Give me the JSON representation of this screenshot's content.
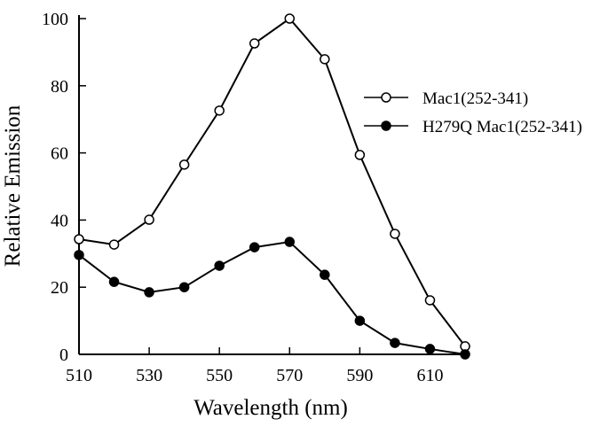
{
  "chart_data": {
    "type": "line",
    "x_label": "Wavelength (nm)",
    "y_label": "Relative Emission",
    "x": [
      510,
      520,
      530,
      540,
      550,
      560,
      570,
      580,
      590,
      600,
      610,
      620
    ],
    "series": [
      {
        "name": "Mac1(252-341)",
        "color": "#000000",
        "marker": "open",
        "values": [
          34.3,
          32.7,
          40.1,
          56.5,
          72.6,
          92.6,
          100,
          87.9,
          59.4,
          35.9,
          16.1,
          2.4
        ]
      },
      {
        "name": "H279Q Mac1(252-341)",
        "color": "#000000",
        "marker": "filled",
        "values": [
          29.6,
          21.6,
          18.5,
          20,
          26.4,
          31.9,
          33.5,
          23.7,
          10,
          3.4,
          1.6,
          0
        ]
      }
    ],
    "xlim": [
      510,
      620
    ],
    "xticks": [
      510,
      530,
      550,
      570,
      590,
      610
    ],
    "ylim": [
      0,
      100
    ],
    "yticks": [
      0,
      20,
      40,
      60,
      80,
      100
    ],
    "legend": "upper right"
  }
}
